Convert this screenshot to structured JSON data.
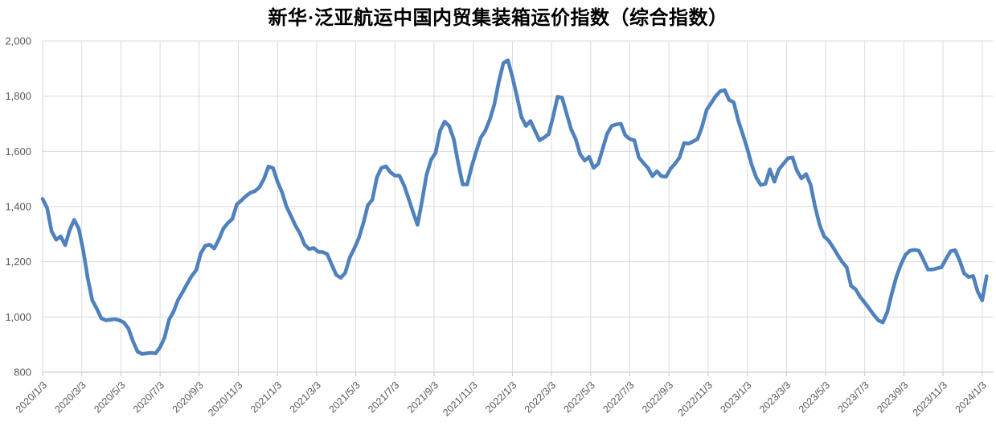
{
  "chart_data": {
    "type": "line",
    "title": "新华·泛亚航运中国内贸集装箱运价指数（综合指数）",
    "xlabel": "",
    "ylabel": "",
    "ylim": [
      800,
      2000
    ],
    "y_tick_step": 200,
    "y_tick_labels": [
      "800",
      "1,000",
      "1,200",
      "1,400",
      "1,600",
      "1,800",
      "2,000"
    ],
    "x_tick_labels": [
      "2020/1/3",
      "2020/3/3",
      "2020/5/3",
      "2020/7/3",
      "2020/9/3",
      "2020/11/3",
      "2021/1/3",
      "2021/3/3",
      "2021/5/3",
      "2021/7/3",
      "2021/9/3",
      "2021/11/3",
      "2022/1/3",
      "2022/3/3",
      "2022/5/3",
      "2022/7/3",
      "2022/9/3",
      "2022/11/3",
      "2023/1/3",
      "2023/3/3",
      "2023/5/3",
      "2023/7/3",
      "2023/9/3",
      "2023/11/3",
      "2024/1/3"
    ],
    "x_start": "2020/1/3",
    "x_frequency": "weekly",
    "grid": true,
    "legend": false,
    "line_color": "#4F81BD",
    "grid_color": "#DADADA",
    "axis_color": "#C6C6C6",
    "label_color": "#595959",
    "values": [
      1428,
      1395,
      1310,
      1280,
      1292,
      1260,
      1315,
      1352,
      1320,
      1240,
      1140,
      1060,
      1030,
      995,
      988,
      990,
      992,
      988,
      980,
      958,
      912,
      875,
      866,
      868,
      870,
      868,
      890,
      925,
      990,
      1020,
      1062,
      1090,
      1120,
      1148,
      1170,
      1230,
      1258,
      1262,
      1248,
      1280,
      1320,
      1340,
      1355,
      1408,
      1422,
      1438,
      1450,
      1456,
      1470,
      1500,
      1545,
      1540,
      1490,
      1452,
      1400,
      1365,
      1330,
      1302,
      1262,
      1246,
      1250,
      1236,
      1235,
      1228,
      1190,
      1152,
      1142,
      1160,
      1215,
      1248,
      1285,
      1340,
      1405,
      1425,
      1505,
      1540,
      1546,
      1524,
      1512,
      1512,
      1478,
      1430,
      1380,
      1334,
      1420,
      1515,
      1570,
      1595,
      1675,
      1708,
      1692,
      1645,
      1557,
      1480,
      1480,
      1545,
      1600,
      1650,
      1675,
      1715,
      1770,
      1852,
      1920,
      1930,
      1870,
      1800,
      1725,
      1692,
      1710,
      1675,
      1640,
      1650,
      1662,
      1725,
      1798,
      1795,
      1738,
      1680,
      1645,
      1590,
      1567,
      1580,
      1540,
      1555,
      1610,
      1665,
      1692,
      1698,
      1700,
      1658,
      1645,
      1640,
      1578,
      1558,
      1540,
      1510,
      1528,
      1510,
      1508,
      1537,
      1555,
      1578,
      1630,
      1628,
      1636,
      1645,
      1690,
      1750,
      1775,
      1800,
      1818,
      1822,
      1786,
      1778,
      1712,
      1662,
      1610,
      1550,
      1505,
      1478,
      1482,
      1535,
      1490,
      1535,
      1555,
      1575,
      1578,
      1530,
      1502,
      1518,
      1480,
      1400,
      1335,
      1292,
      1277,
      1252,
      1225,
      1200,
      1180,
      1112,
      1100,
      1072,
      1052,
      1030,
      1008,
      988,
      980,
      1018,
      1085,
      1145,
      1190,
      1225,
      1240,
      1243,
      1240,
      1207,
      1172,
      1172,
      1176,
      1180,
      1210,
      1238,
      1242,
      1205,
      1158,
      1145,
      1148,
      1092,
      1060,
      1148
    ]
  }
}
